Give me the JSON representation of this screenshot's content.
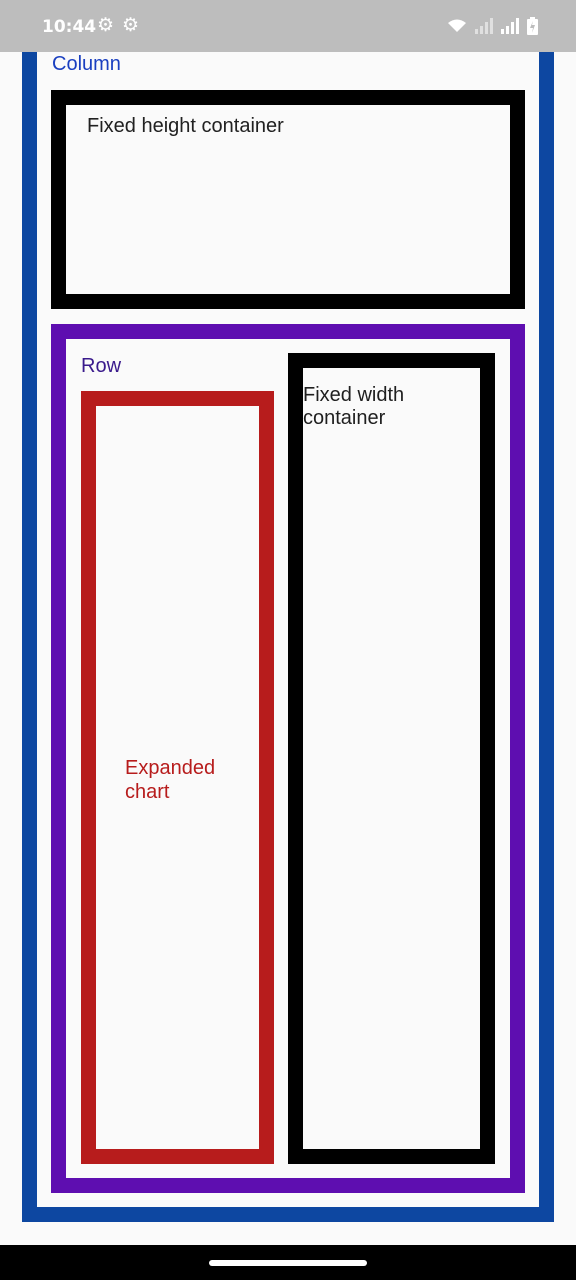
{
  "status_bar": {
    "time": "10:44",
    "icons": [
      "settings-gear-icon",
      "settings-gear-icon",
      "wifi-icon",
      "signal-icon",
      "signal-icon",
      "battery-icon"
    ]
  },
  "layout": {
    "column_label": "Column",
    "fixed_height_label": "Fixed height container",
    "row_label": "Row",
    "expanded_label": "Expanded chart",
    "fixed_width_label": "Fixed width container"
  },
  "colors": {
    "column_border": "#0d47a1",
    "row_border": "#5e0eb0",
    "expanded_border": "#b71c1c",
    "fixed_border": "#000000"
  }
}
